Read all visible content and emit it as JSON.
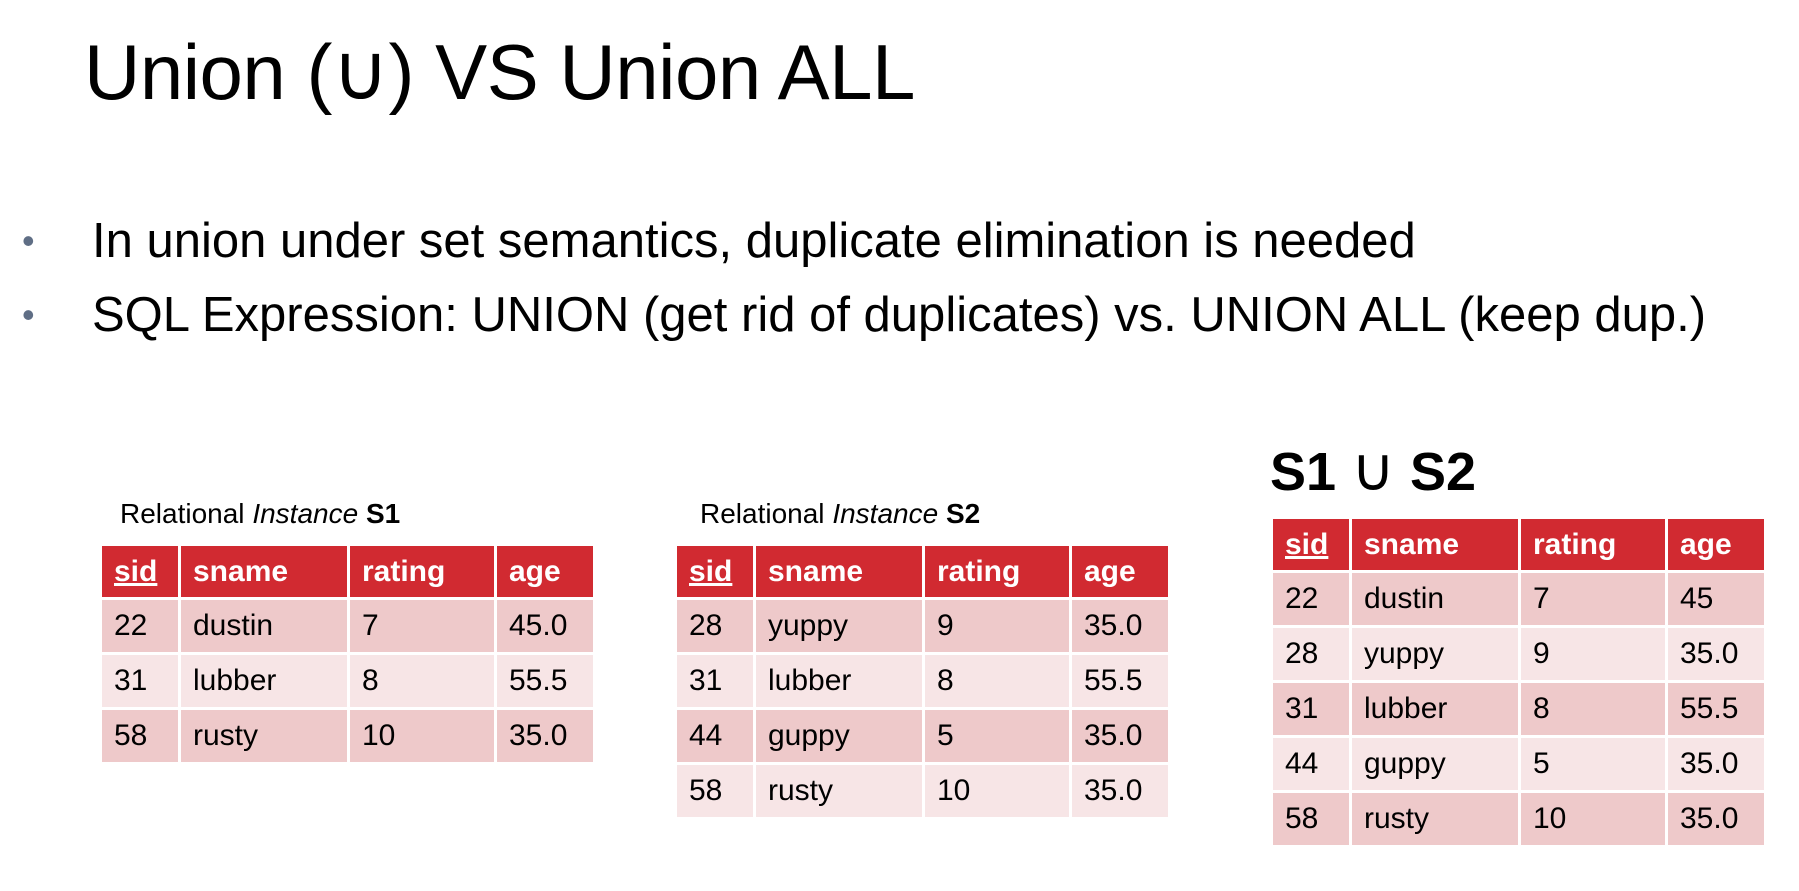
{
  "slide": {
    "title": "Union (∪) VS Union ALL",
    "bullets": [
      "In union under set semantics, duplicate elimination is needed",
      "SQL Expression: UNION (get rid of duplicates) vs. UNION ALL (keep dup.)"
    ]
  },
  "tables": {
    "columns": [
      "sid",
      "sname",
      "rating",
      "age"
    ],
    "s1": {
      "caption_prefix": "Relational ",
      "caption_italic": "Instance",
      "caption_name": " S1",
      "rows": [
        [
          "22",
          "dustin",
          "7",
          "45.0"
        ],
        [
          "31",
          "lubber",
          "8",
          "55.5"
        ],
        [
          "58",
          "rusty",
          "10",
          "35.0"
        ]
      ]
    },
    "s2": {
      "caption_prefix": "Relational ",
      "caption_italic": "Instance",
      "caption_name": " S2",
      "rows": [
        [
          "28",
          "yuppy",
          "9",
          "35.0"
        ],
        [
          "31",
          "lubber",
          "8",
          "55.5"
        ],
        [
          "44",
          "guppy",
          "5",
          "35.0"
        ],
        [
          "58",
          "rusty",
          "10",
          "35.0"
        ]
      ]
    },
    "union": {
      "title_left": "S1 ",
      "title_symbol": "∪",
      "title_right": " S2",
      "rows": [
        [
          "22",
          "dustin",
          "7",
          "45"
        ],
        [
          "28",
          "yuppy",
          "9",
          "35.0"
        ],
        [
          "31",
          "lubber",
          "8",
          "55.5"
        ],
        [
          "44",
          "guppy",
          "5",
          "35.0"
        ],
        [
          "58",
          "rusty",
          "10",
          "35.0"
        ]
      ]
    }
  },
  "colors": {
    "header_bg": "#d12a31",
    "row_dark": "#eec9ca",
    "row_light": "#f7e5e6",
    "bullet_dot": "#5f6e85"
  }
}
